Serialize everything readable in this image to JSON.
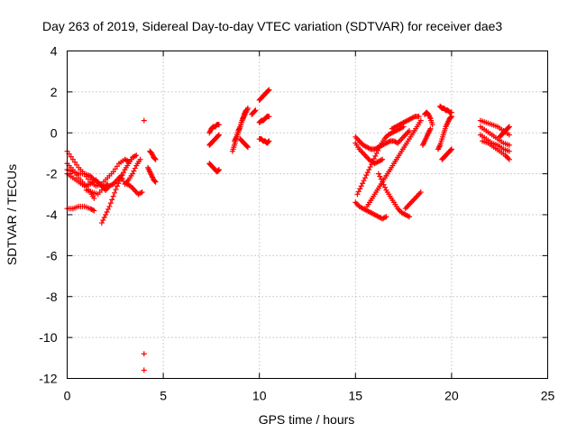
{
  "chart_data": {
    "type": "scatter",
    "title": "Day 263 of 2019, Sidereal Day-to-day VTEC variation (SDTVAR) for receiver dae3",
    "xlabel": "GPS time / hours",
    "ylabel": "SDTVAR / TECUs",
    "xlim": [
      0,
      25
    ],
    "ylim": [
      -12,
      4
    ],
    "xticks": [
      0,
      5,
      10,
      15,
      20,
      25
    ],
    "yticks": [
      -12,
      -10,
      -8,
      -6,
      -4,
      -2,
      0,
      2,
      4
    ],
    "grid": true,
    "marker": "+",
    "color": "#ff0000",
    "series": [
      {
        "name": "SDTVAR",
        "segments": [
          {
            "x": [
              0.0,
              0.3,
              0.6,
              0.9,
              1.2,
              1.5,
              1.8,
              2.1,
              2.4,
              2.7,
              3.0,
              3.2
            ],
            "y": [
              -0.9,
              -1.3,
              -1.7,
              -2.0,
              -2.4,
              -2.6,
              -2.5,
              -2.2,
              -1.9,
              -1.5,
              -1.3,
              -1.4
            ]
          },
          {
            "x": [
              0.0,
              0.3,
              0.6,
              0.9,
              1.2,
              1.4
            ],
            "y": [
              -1.5,
              -1.8,
              -2.2,
              -2.5,
              -2.9,
              -3.2
            ]
          },
          {
            "x": [
              0.0,
              0.3,
              0.6,
              0.9,
              1.2,
              1.5,
              1.8,
              2.0
            ],
            "y": [
              -2.0,
              -2.2,
              -2.4,
              -2.6,
              -2.5,
              -2.3,
              -2.6,
              -2.8
            ]
          },
          {
            "x": [
              0.0,
              0.3,
              0.6,
              0.9,
              1.2,
              1.4,
              1.6,
              1.8,
              2.0,
              2.2,
              2.4,
              2.6,
              2.8,
              3.0,
              3.2,
              3.4,
              3.6,
              3.8
            ],
            "y": [
              -1.8,
              -1.9,
              -2.0,
              -2.0,
              -2.1,
              -2.3,
              -2.4,
              -2.6,
              -2.8,
              -2.6,
              -2.5,
              -2.3,
              -2.1,
              -2.5,
              -2.3,
              -2.0,
              -1.6,
              -1.3
            ]
          },
          {
            "x": [
              0.0,
              0.3,
              0.6,
              0.9,
              1.2,
              1.4
            ],
            "y": [
              -3.7,
              -3.7,
              -3.6,
              -3.6,
              -3.7,
              -3.8
            ]
          },
          {
            "x": [
              1.0,
              1.3,
              1.6,
              1.9,
              2.1
            ],
            "y": [
              -2.8,
              -2.9,
              -3.0,
              -2.7,
              -2.5
            ]
          },
          {
            "x": [
              1.8,
              2.0,
              2.2,
              2.4,
              2.6,
              2.8,
              3.0,
              3.2,
              3.4,
              3.6
            ],
            "y": [
              -4.4,
              -4.0,
              -3.6,
              -3.1,
              -2.6,
              -2.2,
              -1.8,
              -1.5,
              -1.2,
              -1.1
            ]
          },
          {
            "x": [
              3.1,
              3.3,
              3.5,
              3.7,
              3.9
            ],
            "y": [
              -2.5,
              -2.6,
              -2.8,
              -3.0,
              -2.9
            ]
          },
          {
            "x": [
              4.0
            ],
            "y": [
              0.6
            ]
          },
          {
            "x": [
              4.0
            ],
            "y": [
              -10.8
            ]
          },
          {
            "x": [
              4.0
            ],
            "y": [
              -11.6
            ]
          },
          {
            "x": [
              4.3,
              4.4,
              4.5,
              4.6
            ],
            "y": [
              -0.9,
              -1.0,
              -1.2,
              -1.3
            ]
          },
          {
            "x": [
              4.2,
              4.3,
              4.4,
              4.5,
              4.6
            ],
            "y": [
              -1.7,
              -1.9,
              -2.1,
              -2.3,
              -2.4
            ]
          },
          {
            "x": [
              7.4,
              7.5,
              7.6,
              7.7,
              7.8,
              7.9
            ],
            "y": [
              0.0,
              0.2,
              0.3,
              0.3,
              0.4,
              0.4
            ]
          },
          {
            "x": [
              7.4,
              7.5,
              7.6,
              7.7,
              7.8,
              7.9
            ],
            "y": [
              -0.6,
              -0.5,
              -0.4,
              -0.3,
              -0.2,
              -0.1
            ]
          },
          {
            "x": [
              7.4,
              7.5,
              7.6,
              7.7,
              7.8,
              7.9
            ],
            "y": [
              -1.5,
              -1.6,
              -1.7,
              -1.8,
              -1.9,
              -1.8
            ]
          },
          {
            "x": [
              8.6,
              8.7,
              8.8,
              8.9,
              9.0,
              9.1,
              9.2,
              9.3
            ],
            "y": [
              -0.9,
              -0.6,
              -0.3,
              0.0,
              0.3,
              0.6,
              0.9,
              1.1
            ]
          },
          {
            "x": [
              8.7,
              8.8,
              8.9,
              9.0,
              9.1,
              9.2,
              9.3,
              9.4
            ],
            "y": [
              -0.4,
              -0.2,
              0.1,
              0.3,
              0.6,
              0.8,
              1.0,
              1.2
            ]
          },
          {
            "x": [
              9.0,
              9.1,
              9.2,
              9.3,
              9.4
            ],
            "y": [
              -0.3,
              -0.4,
              -0.5,
              -0.6,
              -0.7
            ]
          },
          {
            "x": [
              9.6,
              9.7,
              9.8
            ],
            "y": [
              0.9,
              1.0,
              1.1
            ]
          },
          {
            "x": [
              10.0,
              10.1,
              10.2,
              10.3,
              10.4,
              10.5
            ],
            "y": [
              1.6,
              1.7,
              1.8,
              1.9,
              2.0,
              2.1
            ]
          },
          {
            "x": [
              10.0,
              10.1,
              10.2,
              10.3,
              10.4,
              10.5
            ],
            "y": [
              0.5,
              0.6,
              0.6,
              0.7,
              0.8,
              0.8
            ]
          },
          {
            "x": [
              10.0,
              10.1,
              10.2,
              10.3,
              10.4,
              10.5
            ],
            "y": [
              -0.3,
              -0.3,
              -0.4,
              -0.4,
              -0.5,
              -0.4
            ]
          },
          {
            "x": [
              15.0,
              15.2,
              15.4,
              15.6,
              15.8,
              16.0,
              16.2,
              16.4,
              16.6,
              16.8,
              17.0,
              17.2,
              17.4,
              17.6,
              17.8
            ],
            "y": [
              -0.2,
              -0.4,
              -0.6,
              -0.7,
              -0.8,
              -0.8,
              -0.7,
              -0.6,
              -0.5,
              -0.4,
              -0.4,
              -0.5,
              -0.3,
              -0.1,
              0.1
            ]
          },
          {
            "x": [
              15.0,
              15.2,
              15.4,
              15.6,
              15.8,
              16.0,
              16.2,
              16.4
            ],
            "y": [
              -0.5,
              -0.8,
              -1.0,
              -1.2,
              -1.4,
              -1.5,
              -1.4,
              -1.3
            ]
          },
          {
            "x": [
              15.0,
              15.2,
              15.4,
              15.6,
              15.8,
              16.0,
              16.2,
              16.4,
              16.6
            ],
            "y": [
              -3.4,
              -3.6,
              -3.7,
              -3.8,
              -3.9,
              -4.0,
              -4.1,
              -4.2,
              -4.1
            ]
          },
          {
            "x": [
              15.1,
              15.3,
              15.5,
              15.7,
              15.9,
              16.1,
              16.3,
              16.5,
              16.7,
              16.9,
              17.1,
              17.3,
              17.5
            ],
            "y": [
              -3.0,
              -2.6,
              -2.2,
              -1.8,
              -1.4,
              -1.0,
              -0.6,
              -0.3,
              -0.1,
              0.0,
              0.1,
              0.2,
              0.3
            ]
          },
          {
            "x": [
              15.6,
              15.8,
              16.0,
              16.2,
              16.4,
              16.6,
              16.8,
              17.0,
              17.2,
              17.4,
              17.6,
              17.8,
              18.0,
              18.2,
              18.4
            ],
            "y": [
              -3.6,
              -3.3,
              -3.0,
              -2.7,
              -2.4,
              -2.1,
              -1.8,
              -1.5,
              -1.2,
              -0.9,
              -0.6,
              -0.3,
              0.0,
              0.3,
              0.6
            ]
          },
          {
            "x": [
              16.2,
              16.4,
              16.6,
              16.8,
              17.0,
              17.2,
              17.4,
              17.6,
              17.8
            ],
            "y": [
              -2.0,
              -2.4,
              -2.8,
              -3.1,
              -3.4,
              -3.7,
              -3.9,
              -4.0,
              -4.1
            ]
          },
          {
            "x": [
              17.6,
              17.8,
              18.0,
              18.2,
              18.4
            ],
            "y": [
              -3.7,
              -3.5,
              -3.3,
              -3.1,
              -2.9
            ]
          },
          {
            "x": [
              16.9,
              17.1,
              17.3,
              17.5,
              17.7,
              17.9,
              18.1,
              18.3
            ],
            "y": [
              0.2,
              0.3,
              0.4,
              0.5,
              0.6,
              0.7,
              0.8,
              0.8
            ]
          },
          {
            "x": [
              18.6,
              18.7,
              18.8,
              18.9,
              19.0
            ],
            "y": [
              0.9,
              1.0,
              0.9,
              0.7,
              0.4
            ]
          },
          {
            "x": [
              18.5,
              18.6,
              18.7,
              18.8,
              18.9
            ],
            "y": [
              -0.6,
              -0.4,
              -0.2,
              0.0,
              0.2
            ]
          },
          {
            "x": [
              19.4,
              19.5,
              19.6,
              19.7,
              19.8,
              19.9,
              20.0
            ],
            "y": [
              1.3,
              1.2,
              1.2,
              1.1,
              1.1,
              1.0,
              1.0
            ]
          },
          {
            "x": [
              19.3,
              19.4,
              19.5,
              19.6,
              19.7,
              19.8,
              19.9,
              20.0
            ],
            "y": [
              -0.8,
              -0.6,
              -0.3,
              0.0,
              0.3,
              0.5,
              0.7,
              0.8
            ]
          },
          {
            "x": [
              19.5,
              19.6,
              19.7,
              19.8,
              19.9,
              20.0
            ],
            "y": [
              -1.3,
              -1.2,
              -1.1,
              -1.0,
              -0.9,
              -0.8
            ]
          },
          {
            "x": [
              21.5,
              21.8,
              22.1,
              22.4,
              22.7,
              23.0
            ],
            "y": [
              0.6,
              0.5,
              0.4,
              0.3,
              0.1,
              -0.1
            ]
          },
          {
            "x": [
              21.5,
              21.8,
              22.1,
              22.4,
              22.7,
              23.0
            ],
            "y": [
              0.3,
              0.1,
              -0.1,
              -0.3,
              -0.5,
              -0.6
            ]
          },
          {
            "x": [
              21.5,
              21.8,
              22.1,
              22.4,
              22.7,
              23.0
            ],
            "y": [
              -0.1,
              -0.3,
              -0.5,
              -0.6,
              -0.8,
              -0.9
            ]
          },
          {
            "x": [
              21.6,
              21.9,
              22.2,
              22.5,
              22.8,
              23.0
            ],
            "y": [
              -0.4,
              -0.5,
              -0.7,
              -0.9,
              -1.1,
              -1.3
            ]
          },
          {
            "x": [
              22.5,
              22.6,
              22.7,
              22.8,
              22.9,
              23.0
            ],
            "y": [
              -0.2,
              -0.1,
              0.0,
              0.1,
              0.2,
              0.3
            ]
          }
        ]
      }
    ]
  }
}
